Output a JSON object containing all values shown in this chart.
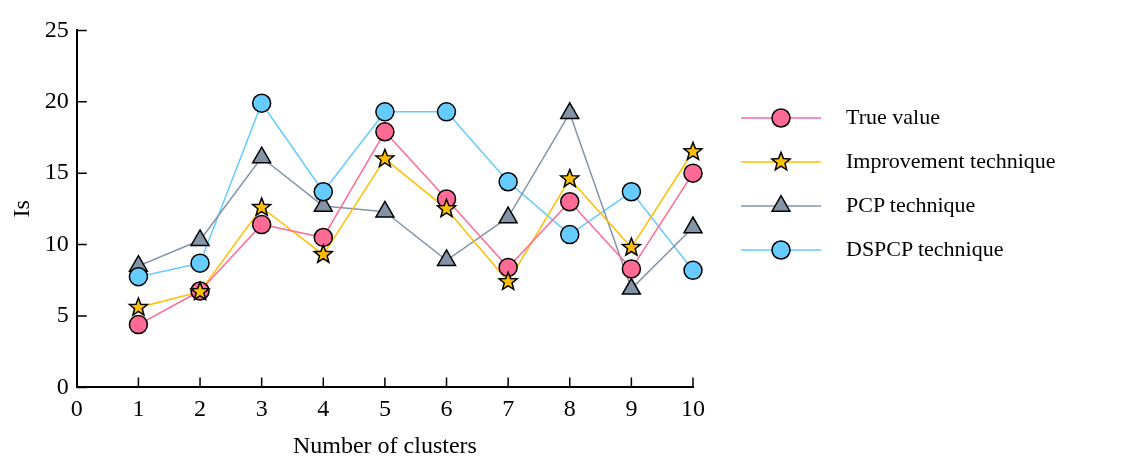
{
  "chart_data": {
    "type": "line",
    "xlabel": "Number of clusters",
    "ylabel": "Is",
    "x": [
      1,
      2,
      3,
      4,
      5,
      6,
      7,
      8,
      9,
      10
    ],
    "xlim": [
      0,
      10
    ],
    "xticks": [
      0,
      1,
      2,
      3,
      4,
      5,
      6,
      7,
      8,
      9,
      10
    ],
    "ylim": [
      0,
      25
    ],
    "yticks": [
      0,
      5,
      10,
      15,
      20,
      25
    ],
    "grid": false,
    "legend": "right",
    "series": [
      {
        "name": "True value",
        "color": "#ff6b95",
        "marker": "circle",
        "values": [
          4.4,
          6.75,
          11.4,
          10.5,
          17.9,
          13.2,
          8.4,
          13.0,
          8.3,
          15.0
        ]
      },
      {
        "name": "Improvement technique",
        "color": "#ffbf00",
        "marker": "star",
        "values": [
          5.6,
          6.7,
          12.6,
          9.3,
          16.0,
          12.5,
          7.4,
          14.6,
          9.8,
          16.5
        ]
      },
      {
        "name": "PCP technique",
        "color": "#8494a8",
        "marker": "triangle",
        "values": [
          8.5,
          10.3,
          16.1,
          12.7,
          12.3,
          8.9,
          11.9,
          19.2,
          6.9,
          11.2
        ]
      },
      {
        "name": "DSPCP technique",
        "color": "#66ccff",
        "marker": "circle",
        "values": [
          7.75,
          8.7,
          19.9,
          13.7,
          19.3,
          19.3,
          14.4,
          10.7,
          13.7,
          8.2
        ]
      }
    ]
  }
}
